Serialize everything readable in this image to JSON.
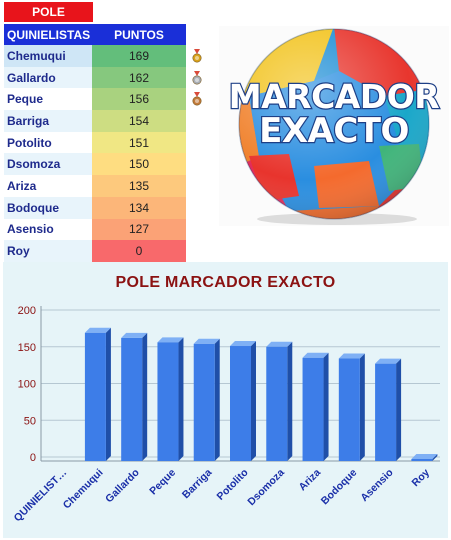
{
  "table": {
    "tab_label": "POLE",
    "headers": {
      "name": "QUINIELISTAS",
      "points": "PUNTOS"
    },
    "rows": [
      {
        "name": "Chemuqui",
        "points": 169,
        "color": "#63be7b",
        "medal": "gold-medal"
      },
      {
        "name": "Gallardo",
        "points": 162,
        "color": "#86c87e",
        "medal": "silver-medal"
      },
      {
        "name": "Peque",
        "points": 156,
        "color": "#a9d27f",
        "medal": "bronze-medal"
      },
      {
        "name": "Barriga",
        "points": 154,
        "color": "#cddd82"
      },
      {
        "name": "Potolito",
        "points": 151,
        "color": "#f0e784"
      },
      {
        "name": "Dsomoza",
        "points": 150,
        "color": "#fedd81"
      },
      {
        "name": "Ariza",
        "points": 135,
        "color": "#fdc97d"
      },
      {
        "name": "Bodoque",
        "points": 134,
        "color": "#fcb679"
      },
      {
        "name": "Asensio",
        "points": 127,
        "color": "#fba276"
      },
      {
        "name": "Roy",
        "points": 0,
        "color": "#f8696b"
      }
    ]
  },
  "image": {
    "line1": "MARCADOR",
    "line2": "EXACTO"
  },
  "chart_data": {
    "type": "bar",
    "title": "POLE MARCADOR EXACTO",
    "categories": [
      "QUINIELIST…",
      "Chemuqui",
      "Gallardo",
      "Peque",
      "Barriga",
      "Potolito",
      "Dsomoza",
      "Ariza",
      "Bodoque",
      "Asensio",
      "Roy"
    ],
    "values": [
      null,
      169,
      162,
      156,
      154,
      151,
      150,
      135,
      134,
      127,
      0
    ],
    "ylim": [
      0,
      200
    ],
    "yticks": [
      0,
      50,
      100,
      150,
      200
    ],
    "grid": true,
    "bar_color": "#3d7de8",
    "xlabel": "",
    "ylabel": ""
  }
}
